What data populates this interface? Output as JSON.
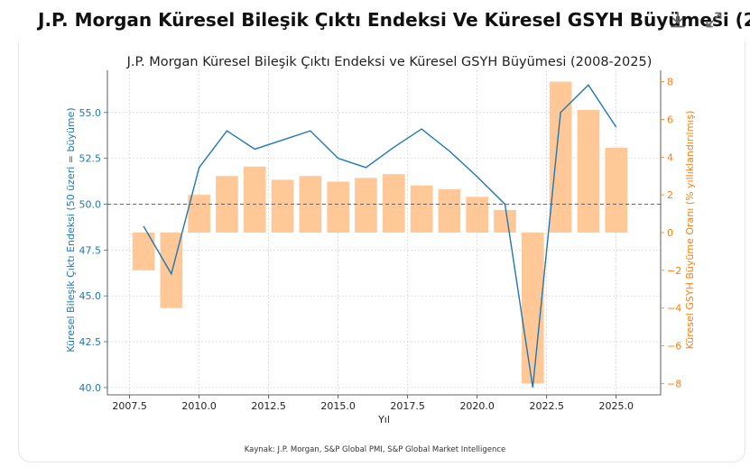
{
  "header": {
    "title": "J.P. Morgan Küresel Bileşik Çıktı Endeksi Ve Küresel GSYH Büyümesi (2...",
    "download_icon": "download-icon",
    "expand_icon": "expand-icon"
  },
  "source_text": "Kaynak: J.P. Morgan, S&P Global PMI, S&P Global Market Intelligence",
  "colors": {
    "pmi_line": "#1f77b4",
    "gdp_bars": "#ffc896",
    "right_axis": "#ff7f0e",
    "left_axis": "#1f77b4",
    "reference_line": "#555555"
  },
  "chart_data": {
    "type": "bar",
    "title": "J.P. Morgan Küresel Bileşik Çıktı Endeksi ve Küresel GSYH Büyümesi (2008-2025)",
    "xlabel": "Yıl",
    "ylabel_left": "Küresel Bileşik Çıktı Endeksi (50 üzeri = büyüme)",
    "ylabel_right": "Küresel GSYH Büyüme Oranı (% yıllıklandırılmış)",
    "x_ticks": [
      "2007.5",
      "2010.0",
      "2012.5",
      "2015.0",
      "2017.5",
      "2020.0",
      "2022.5",
      "2025.0"
    ],
    "x_tick_values": [
      2007.5,
      2010,
      2012.5,
      2015,
      2017.5,
      2020,
      2022.5,
      2025
    ],
    "left_ticks": [
      "40.0",
      "42.5",
      "45.0",
      "47.5",
      "50.0",
      "52.5",
      "55.0"
    ],
    "left_tick_values": [
      40,
      42.5,
      45,
      47.5,
      50,
      52.5,
      55
    ],
    "right_ticks": [
      "−8",
      "−6",
      "−4",
      "−2",
      "0",
      "2",
      "4",
      "6",
      "8"
    ],
    "right_tick_values": [
      -8,
      -6,
      -4,
      -2,
      0,
      2,
      4,
      6,
      8
    ],
    "xlim": [
      2006.7,
      2026.6
    ],
    "ylim_left": [
      39.6,
      57.3
    ],
    "ylim_right": [
      -8.6,
      8.6
    ],
    "grid": true,
    "reference_line_left": 50,
    "series": [
      {
        "name": "Küresel Bileşik Çıktı Endeksi",
        "kind": "line",
        "axis": "left",
        "x": [
          2008,
          2009,
          2010,
          2011,
          2012,
          2013,
          2014,
          2015,
          2016,
          2017,
          2018,
          2019,
          2020,
          2021,
          2022,
          2023,
          2024,
          2025
        ],
        "values": [
          48.8,
          46.2,
          52.0,
          54.0,
          53.0,
          53.5,
          54.0,
          52.5,
          52.0,
          53.1,
          54.1,
          52.9,
          51.5,
          50.0,
          40.0,
          55.0,
          56.5,
          54.2
        ]
      },
      {
        "name": "Küresel GSYH Büyüme Oranı",
        "kind": "bar",
        "axis": "right",
        "x": [
          2008,
          2009,
          2010,
          2011,
          2012,
          2013,
          2014,
          2015,
          2016,
          2017,
          2018,
          2019,
          2020,
          2021,
          2022,
          2023,
          2024,
          2025
        ],
        "values": [
          -2.0,
          -4.0,
          2.0,
          3.0,
          3.5,
          2.8,
          3.0,
          2.7,
          2.9,
          3.1,
          2.5,
          2.3,
          1.9,
          1.2,
          -8.0,
          8.0,
          6.5,
          4.5
        ]
      }
    ]
  }
}
